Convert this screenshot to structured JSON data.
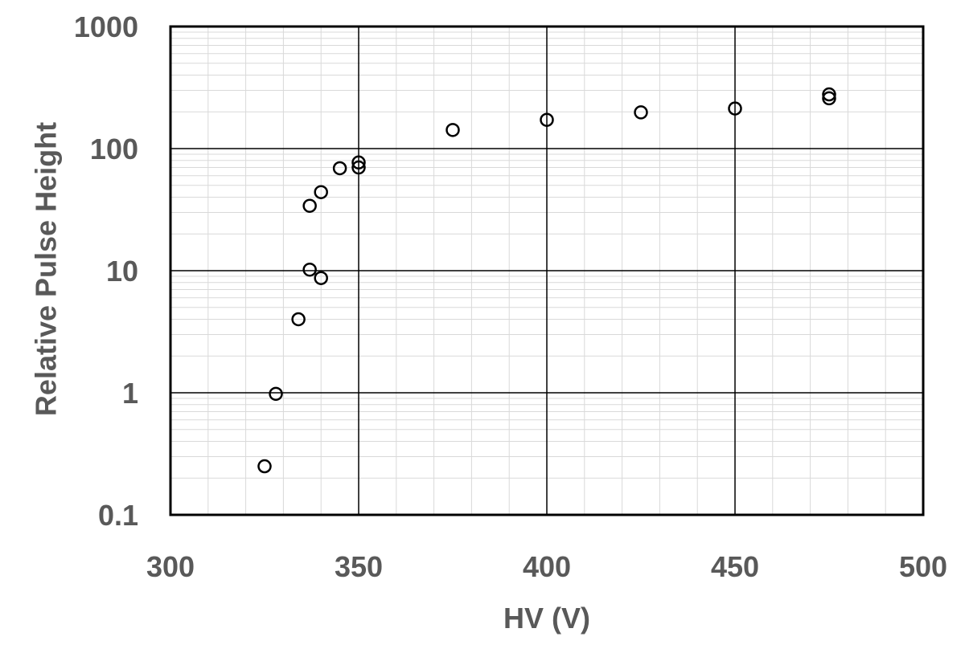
{
  "chart_data": {
    "type": "scatter",
    "title": "",
    "xlabel": "HV (V)",
    "ylabel": "Relative Pulse Height",
    "xlim": [
      300,
      500
    ],
    "ylim": [
      0.1,
      1000
    ],
    "yscale": "log",
    "x_ticks": [
      "300",
      "350",
      "400",
      "450",
      "500"
    ],
    "y_ticks": [
      "0.1",
      "1",
      "10",
      "100",
      "1000"
    ],
    "grid": "major and minor",
    "marker": "open circle",
    "marker_color": "#000000",
    "points": [
      {
        "x": 325,
        "y": 0.25
      },
      {
        "x": 328,
        "y": 0.98
      },
      {
        "x": 334,
        "y": 4.0
      },
      {
        "x": 337,
        "y": 10.2
      },
      {
        "x": 340,
        "y": 8.7
      },
      {
        "x": 337,
        "y": 34
      },
      {
        "x": 340,
        "y": 44
      },
      {
        "x": 345,
        "y": 69
      },
      {
        "x": 350,
        "y": 70
      },
      {
        "x": 350,
        "y": 77
      },
      {
        "x": 375,
        "y": 142
      },
      {
        "x": 400,
        "y": 172
      },
      {
        "x": 425,
        "y": 198
      },
      {
        "x": 450,
        "y": 213
      },
      {
        "x": 475,
        "y": 258
      },
      {
        "x": 475,
        "y": 278
      }
    ]
  },
  "colors": {
    "major_grid": "#000000",
    "minor_grid": "#d9d9d9",
    "text": "#595959",
    "background": "#ffffff"
  }
}
